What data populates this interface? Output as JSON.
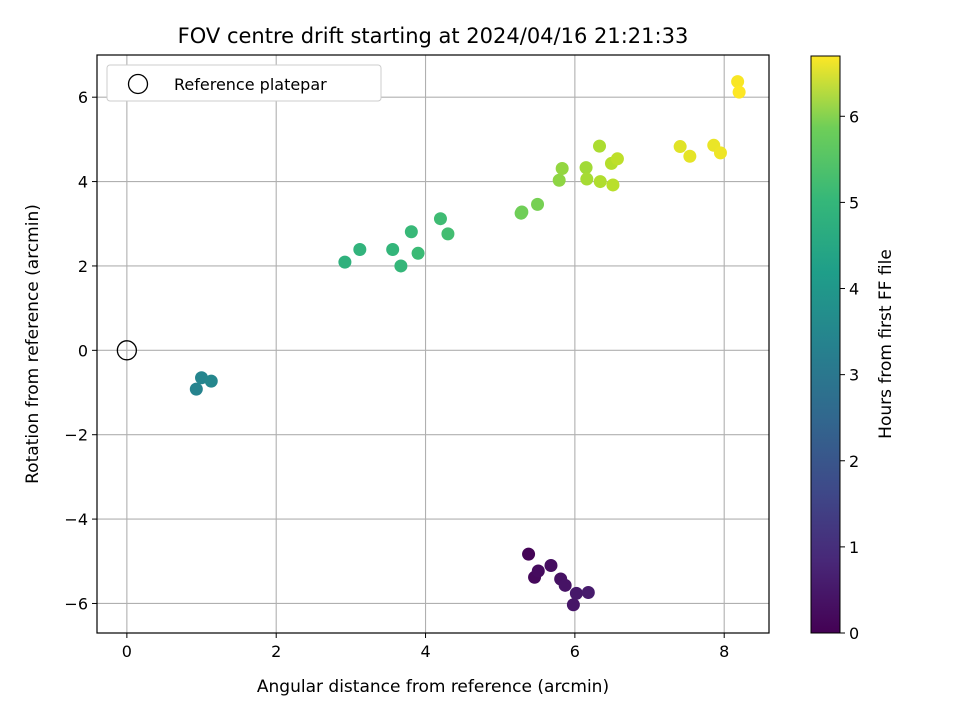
{
  "chart_data": {
    "type": "scatter",
    "title": "FOV centre drift starting at 2024/04/16 21:21:33",
    "xlabel": "Angular distance from reference (arcmin)",
    "ylabel": "Rotation from reference (arcmin)",
    "xlim": [
      -0.4,
      8.6
    ],
    "ylim": [
      -6.7,
      7.0
    ],
    "xticks": [
      0,
      2,
      4,
      6,
      8
    ],
    "yticks": [
      -6,
      -4,
      -2,
      0,
      2,
      4,
      6
    ],
    "xtick_labels": [
      "0",
      "2",
      "4",
      "6",
      "8"
    ],
    "ytick_labels": [
      "−6",
      "−4",
      "−2",
      "0",
      "2",
      "4",
      "6"
    ],
    "grid": true,
    "legend": {
      "location": "upper left",
      "entries": [
        "Reference platepar"
      ]
    },
    "reference_point": {
      "x": 0,
      "y": 0,
      "marker": "open circle"
    },
    "colormap": "viridis",
    "colorbar": {
      "label": "Hours from first FF file",
      "range": [
        0,
        6.7
      ],
      "ticks": [
        0,
        1,
        2,
        3,
        4,
        5,
        6
      ],
      "tick_labels": [
        "0",
        "1",
        "2",
        "3",
        "4",
        "5",
        "6"
      ]
    },
    "points": [
      {
        "x": 5.38,
        "y": -4.83,
        "hours": 0.05
      },
      {
        "x": 5.46,
        "y": -5.38,
        "hours": 0.15
      },
      {
        "x": 5.51,
        "y": -5.23,
        "hours": 0.2
      },
      {
        "x": 5.68,
        "y": -5.1,
        "hours": 0.25
      },
      {
        "x": 5.81,
        "y": -5.42,
        "hours": 0.3
      },
      {
        "x": 5.87,
        "y": -5.57,
        "hours": 0.35
      },
      {
        "x": 5.98,
        "y": -6.03,
        "hours": 0.4
      },
      {
        "x": 6.02,
        "y": -5.76,
        "hours": 0.45
      },
      {
        "x": 6.18,
        "y": -5.74,
        "hours": 0.5
      },
      {
        "x": 0.93,
        "y": -0.92,
        "hours": 3.0
      },
      {
        "x": 1.0,
        "y": -0.65,
        "hours": 3.05
      },
      {
        "x": 1.13,
        "y": -0.73,
        "hours": 3.1
      },
      {
        "x": 2.92,
        "y": 2.09,
        "hours": 4.3
      },
      {
        "x": 3.12,
        "y": 2.39,
        "hours": 4.35
      },
      {
        "x": 3.56,
        "y": 2.39,
        "hours": 4.4
      },
      {
        "x": 3.67,
        "y": 2.0,
        "hours": 4.45
      },
      {
        "x": 3.81,
        "y": 2.81,
        "hours": 4.5
      },
      {
        "x": 3.9,
        "y": 2.3,
        "hours": 4.55
      },
      {
        "x": 4.2,
        "y": 3.12,
        "hours": 4.6
      },
      {
        "x": 4.3,
        "y": 2.76,
        "hours": 4.65
      },
      {
        "x": 5.28,
        "y": 3.25,
        "hours": 5.2
      },
      {
        "x": 5.29,
        "y": 3.28,
        "hours": 5.22
      },
      {
        "x": 5.5,
        "y": 3.46,
        "hours": 5.3
      },
      {
        "x": 5.79,
        "y": 4.03,
        "hours": 5.55
      },
      {
        "x": 5.83,
        "y": 4.31,
        "hours": 5.6
      },
      {
        "x": 6.15,
        "y": 4.33,
        "hours": 5.75
      },
      {
        "x": 6.16,
        "y": 4.06,
        "hours": 5.8
      },
      {
        "x": 6.33,
        "y": 4.84,
        "hours": 5.85
      },
      {
        "x": 6.34,
        "y": 4.0,
        "hours": 5.9
      },
      {
        "x": 6.49,
        "y": 4.43,
        "hours": 5.95
      },
      {
        "x": 6.51,
        "y": 3.92,
        "hours": 6.0
      },
      {
        "x": 6.57,
        "y": 4.54,
        "hours": 6.05
      },
      {
        "x": 7.41,
        "y": 4.83,
        "hours": 6.4
      },
      {
        "x": 7.54,
        "y": 4.6,
        "hours": 6.45
      },
      {
        "x": 7.86,
        "y": 4.86,
        "hours": 6.5
      },
      {
        "x": 7.95,
        "y": 4.68,
        "hours": 6.55
      },
      {
        "x": 8.18,
        "y": 6.37,
        "hours": 6.65
      },
      {
        "x": 8.2,
        "y": 6.12,
        "hours": 6.7
      }
    ]
  }
}
